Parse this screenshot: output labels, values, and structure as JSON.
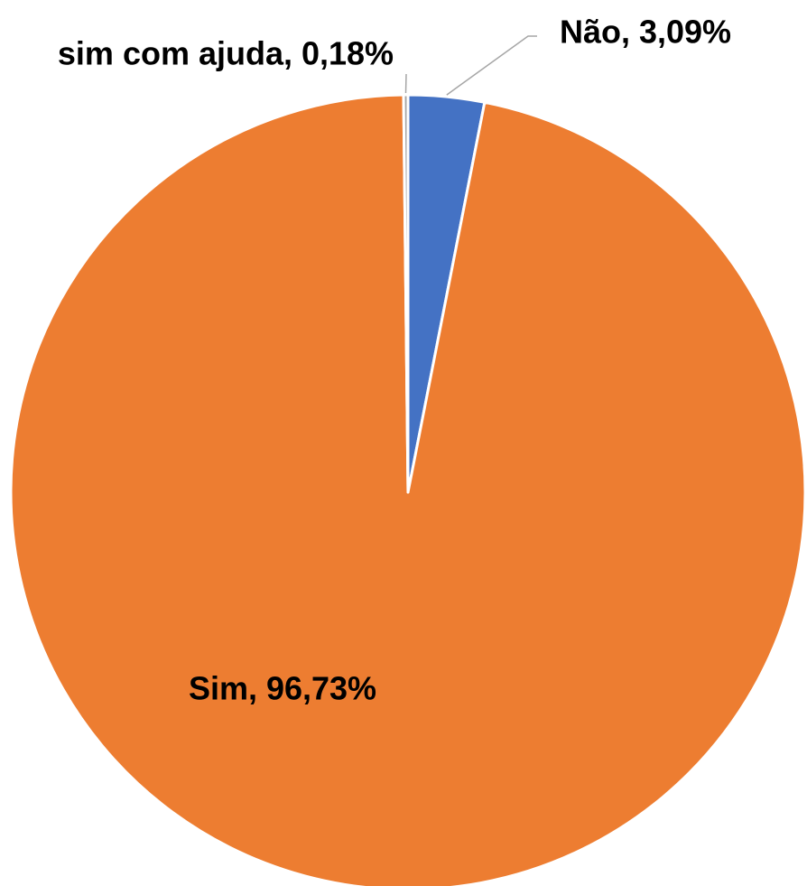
{
  "chart_data": {
    "type": "pie",
    "values": [
      3.09,
      96.73,
      0.18
    ],
    "value_labels": [
      "Não, 3,09%",
      "Sim, 96,73%",
      "sim com ajuda, 0,18%"
    ],
    "colors": [
      "#4472c4",
      "#ed7d31",
      "#a5a5a5"
    ]
  }
}
